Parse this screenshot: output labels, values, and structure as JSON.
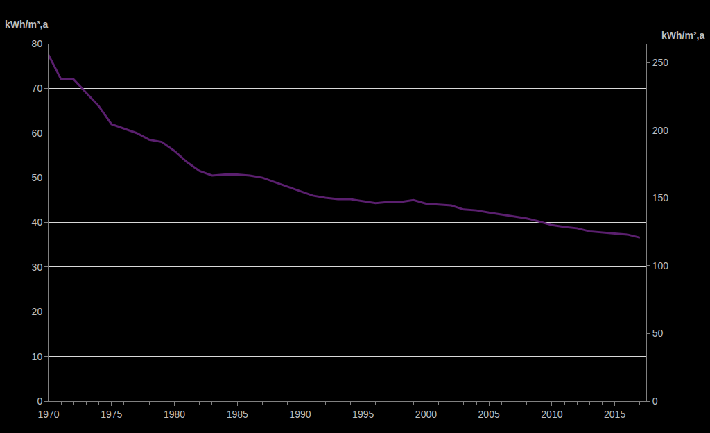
{
  "chart_data": {
    "type": "line",
    "ylabel": "kWh/m³,a",
    "y2label": "kWh/m²,a",
    "x": [
      1970,
      1971,
      1972,
      1973,
      1974,
      1975,
      1976,
      1977,
      1978,
      1979,
      1980,
      1981,
      1982,
      1983,
      1984,
      1985,
      1986,
      1987,
      1988,
      1989,
      1990,
      1991,
      1992,
      1993,
      1994,
      1995,
      1996,
      1997,
      1998,
      1999,
      2000,
      2001,
      2002,
      2003,
      2004,
      2005,
      2006,
      2007,
      2008,
      2009,
      2010,
      2011,
      2012,
      2013,
      2014,
      2015,
      2016,
      2017
    ],
    "values": [
      77.5,
      72,
      72,
      69,
      66,
      62,
      61,
      60,
      58.5,
      58,
      56,
      53.5,
      51.5,
      50.5,
      50.7,
      50.7,
      50.5,
      50,
      49,
      48,
      47,
      46,
      45.5,
      45.2,
      45.2,
      44.8,
      44.3,
      44.6,
      44.6,
      45,
      44.2,
      44,
      43.8,
      42.9,
      42.7,
      42.2,
      41.8,
      41.3,
      40.9,
      40.2,
      39.4,
      39,
      38.7,
      38,
      37.7,
      37.5,
      37.3,
      36.6
    ],
    "color": "#5a1f6e",
    "xlim": [
      1970,
      2017.5
    ],
    "xticks": [
      1970,
      1975,
      1980,
      1985,
      1990,
      1995,
      2000,
      2005,
      2010,
      2015
    ],
    "ylim": [
      0,
      80
    ],
    "yticks": [
      0,
      10,
      20,
      30,
      40,
      50,
      60,
      70,
      80
    ],
    "y2lim": [
      0,
      264
    ],
    "y2ticks": [
      0,
      50,
      100,
      150,
      200,
      250
    ],
    "grid": true
  }
}
